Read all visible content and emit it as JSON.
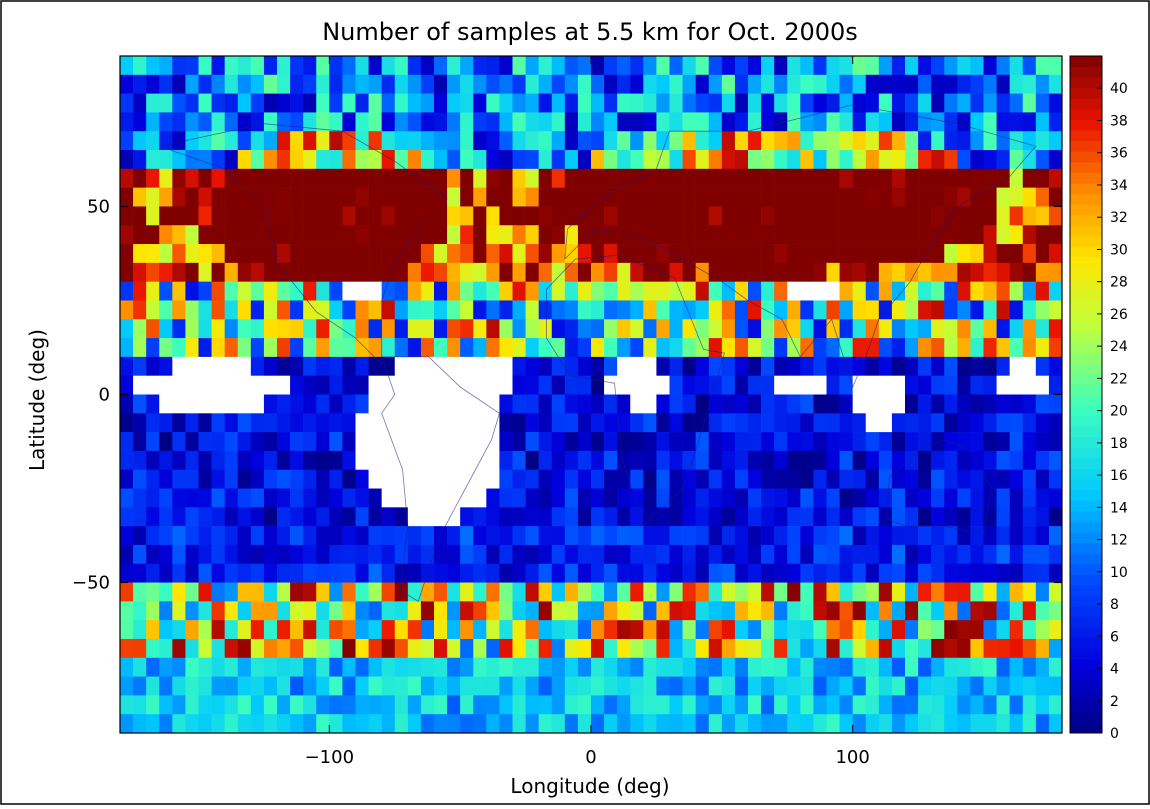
{
  "chart_data": {
    "type": "heatmap",
    "title": "Number of samples at  5.5 km for Oct. 2000s",
    "xlabel": "Longitude (deg)",
    "ylabel": "Latitude (deg)",
    "xlim": [
      -180,
      180
    ],
    "ylim": [
      -90,
      90
    ],
    "x_ticks": [
      -100,
      0,
      100
    ],
    "x_tick_labels": [
      "−100",
      "0",
      "100"
    ],
    "y_ticks": [
      50,
      0,
      -50
    ],
    "y_tick_labels": [
      "50",
      "0",
      "−50"
    ],
    "colorbar": {
      "min": 0,
      "max": 42,
      "ticks": [
        40,
        38,
        36,
        34,
        32,
        30,
        28,
        26,
        24,
        22,
        20,
        18,
        16,
        14,
        12,
        10,
        8,
        6,
        4,
        2,
        0
      ],
      "tick_labels": [
        "40",
        "38",
        "36",
        "34",
        "32",
        "30",
        "28",
        "26",
        "24",
        "22",
        "20",
        "18",
        "16",
        "14",
        "12",
        "10",
        "8",
        "6",
        "4",
        "2",
        "0"
      ]
    },
    "grid": false,
    "grid_resolution_deg": 5,
    "colormap": "rainbow (dark blue = 0 to dark red = 40+)",
    "no_data_color": "#ffffff",
    "band_summary": [
      {
        "lat_range": "85N-60N",
        "typical_count": "2-30, higher over land"
      },
      {
        "lat_range": "60N-30N",
        "typical_count": "40+ (saturated) over Eurasia and North America"
      },
      {
        "lat_range": "30N-10N",
        "typical_count": "5-40, scattered"
      },
      {
        "lat_range": "10N-35S",
        "typical_count": "0-10 over oceans, gaps over land / ITCZ"
      },
      {
        "lat_range": "35S-50S",
        "typical_count": "2-10"
      },
      {
        "lat_range": "50S-70S",
        "typical_count": "10-40"
      },
      {
        "lat_range": "70S-90S",
        "typical_count": "10-20"
      }
    ]
  },
  "colors": {
    "frame": "#000000",
    "background": "#ffffff",
    "no_data": "#ffffff",
    "coastline": "#1a1a8c"
  }
}
